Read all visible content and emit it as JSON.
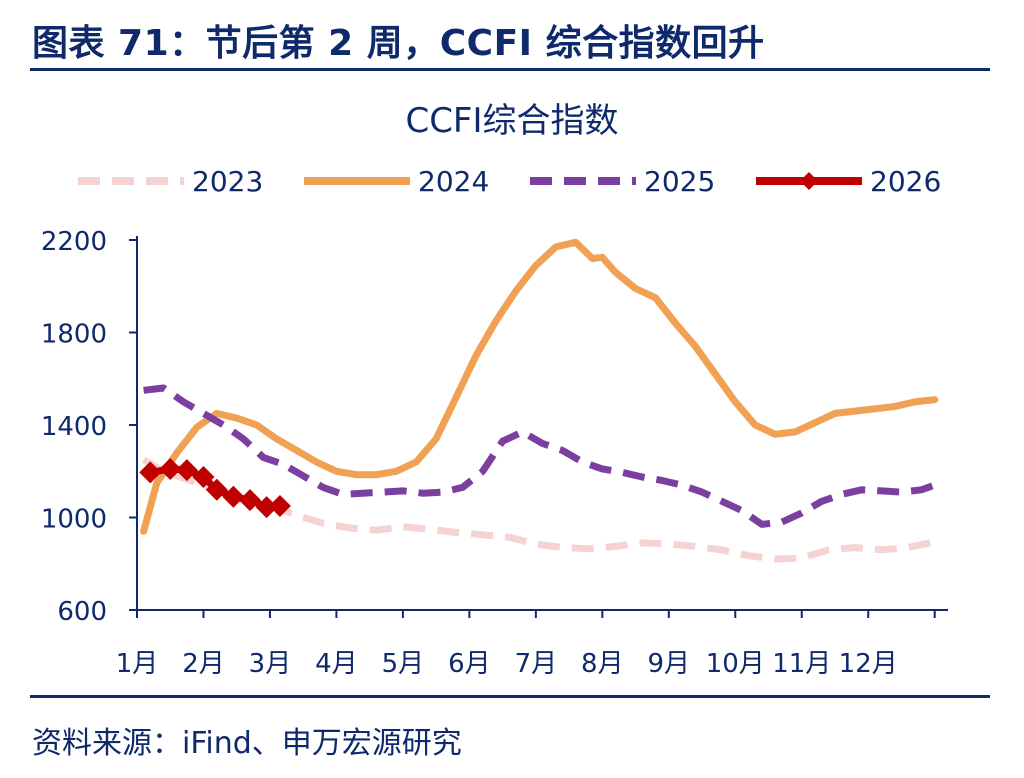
{
  "figure": {
    "title": "图表 71：节后第 2 周，CCFI 综合指数回升",
    "source": "资料来源：iFind、申万宏源研究"
  },
  "chart_data": {
    "type": "line",
    "title": "CCFI综合指数",
    "xlabel": "",
    "ylabel": "",
    "x_range": [
      1,
      13.2
    ],
    "ylim": [
      600,
      2200
    ],
    "yticks": [
      600,
      1000,
      1400,
      1800,
      2200
    ],
    "xticks": [
      {
        "label": "1月",
        "pos": 1.0
      },
      {
        "label": "2月",
        "pos": 2.0
      },
      {
        "label": "3月",
        "pos": 3.0
      },
      {
        "label": "4月",
        "pos": 4.0
      },
      {
        "label": "5月",
        "pos": 5.0
      },
      {
        "label": "6月",
        "pos": 6.0
      },
      {
        "label": "7月",
        "pos": 7.0
      },
      {
        "label": "8月",
        "pos": 8.0
      },
      {
        "label": "9月",
        "pos": 9.0
      },
      {
        "label": "10月",
        "pos": 10.0
      },
      {
        "label": "11月",
        "pos": 11.0
      },
      {
        "label": "12月",
        "pos": 12.0
      }
    ],
    "grid": false,
    "legend_position": "top",
    "series": [
      {
        "name": "2023",
        "color": "#f5d3d3",
        "style": "dashed",
        "marker": "none",
        "x": [
          1.1,
          1.4,
          1.8,
          2.2,
          2.6,
          3.0,
          3.4,
          3.8,
          4.2,
          4.6,
          5.0,
          5.4,
          5.8,
          6.2,
          6.6,
          7.0,
          7.4,
          7.8,
          8.2,
          8.6,
          9.0,
          9.4,
          9.8,
          10.2,
          10.6,
          11.0,
          11.4,
          11.8,
          12.2,
          12.6,
          13.0
        ],
        "y": [
          1250,
          1200,
          1160,
          1120,
          1080,
          1050,
          1010,
          975,
          955,
          945,
          960,
          950,
          935,
          925,
          915,
          885,
          870,
          865,
          875,
          890,
          885,
          875,
          860,
          835,
          820,
          825,
          860,
          870,
          860,
          870,
          895
        ]
      },
      {
        "name": "2024",
        "color": "#f0a154",
        "style": "solid",
        "marker": "none",
        "x": [
          1.1,
          1.3,
          1.6,
          1.9,
          2.2,
          2.5,
          2.8,
          3.1,
          3.4,
          3.7,
          4.0,
          4.3,
          4.6,
          4.9,
          5.2,
          5.5,
          5.8,
          6.1,
          6.4,
          6.7,
          7.0,
          7.3,
          7.6,
          7.85,
          8.0,
          8.2,
          8.5,
          8.8,
          9.1,
          9.4,
          9.7,
          10.0,
          10.3,
          10.6,
          10.9,
          11.2,
          11.5,
          11.8,
          12.1,
          12.4,
          12.7,
          13.0
        ],
        "y": [
          940,
          1150,
          1280,
          1390,
          1450,
          1430,
          1400,
          1340,
          1290,
          1240,
          1200,
          1185,
          1185,
          1200,
          1240,
          1340,
          1520,
          1700,
          1850,
          1980,
          2090,
          2170,
          2190,
          2120,
          2125,
          2060,
          1990,
          1950,
          1840,
          1740,
          1620,
          1500,
          1400,
          1360,
          1370,
          1410,
          1450,
          1460,
          1470,
          1480,
          1500,
          1510
        ]
      },
      {
        "name": "2025",
        "color": "#7b3fa0",
        "style": "dashed",
        "marker": "none",
        "x": [
          1.1,
          1.4,
          1.7,
          2.0,
          2.3,
          2.6,
          2.9,
          3.2,
          3.5,
          3.8,
          4.1,
          4.4,
          4.7,
          5.0,
          5.3,
          5.6,
          5.9,
          6.2,
          6.5,
          6.8,
          7.1,
          7.4,
          7.7,
          8.0,
          8.3,
          8.6,
          8.9,
          9.2,
          9.5,
          9.8,
          10.1,
          10.4,
          10.7,
          11.0,
          11.3,
          11.6,
          11.9,
          12.2,
          12.5,
          12.8,
          13.0
        ],
        "y": [
          1550,
          1560,
          1500,
          1450,
          1400,
          1340,
          1260,
          1230,
          1180,
          1130,
          1100,
          1105,
          1110,
          1115,
          1105,
          1110,
          1130,
          1200,
          1330,
          1370,
          1320,
          1290,
          1240,
          1210,
          1195,
          1175,
          1160,
          1140,
          1110,
          1070,
          1030,
          970,
          980,
          1020,
          1070,
          1100,
          1120,
          1115,
          1110,
          1120,
          1140
        ]
      },
      {
        "name": "2026",
        "color": "#c00000",
        "style": "solid",
        "marker": "diamond",
        "x": [
          1.2,
          1.5,
          1.75,
          2.0,
          2.2,
          2.45,
          2.7,
          2.95,
          3.15
        ],
        "y": [
          1195,
          1210,
          1205,
          1175,
          1120,
          1090,
          1075,
          1045,
          1050
        ]
      }
    ]
  }
}
